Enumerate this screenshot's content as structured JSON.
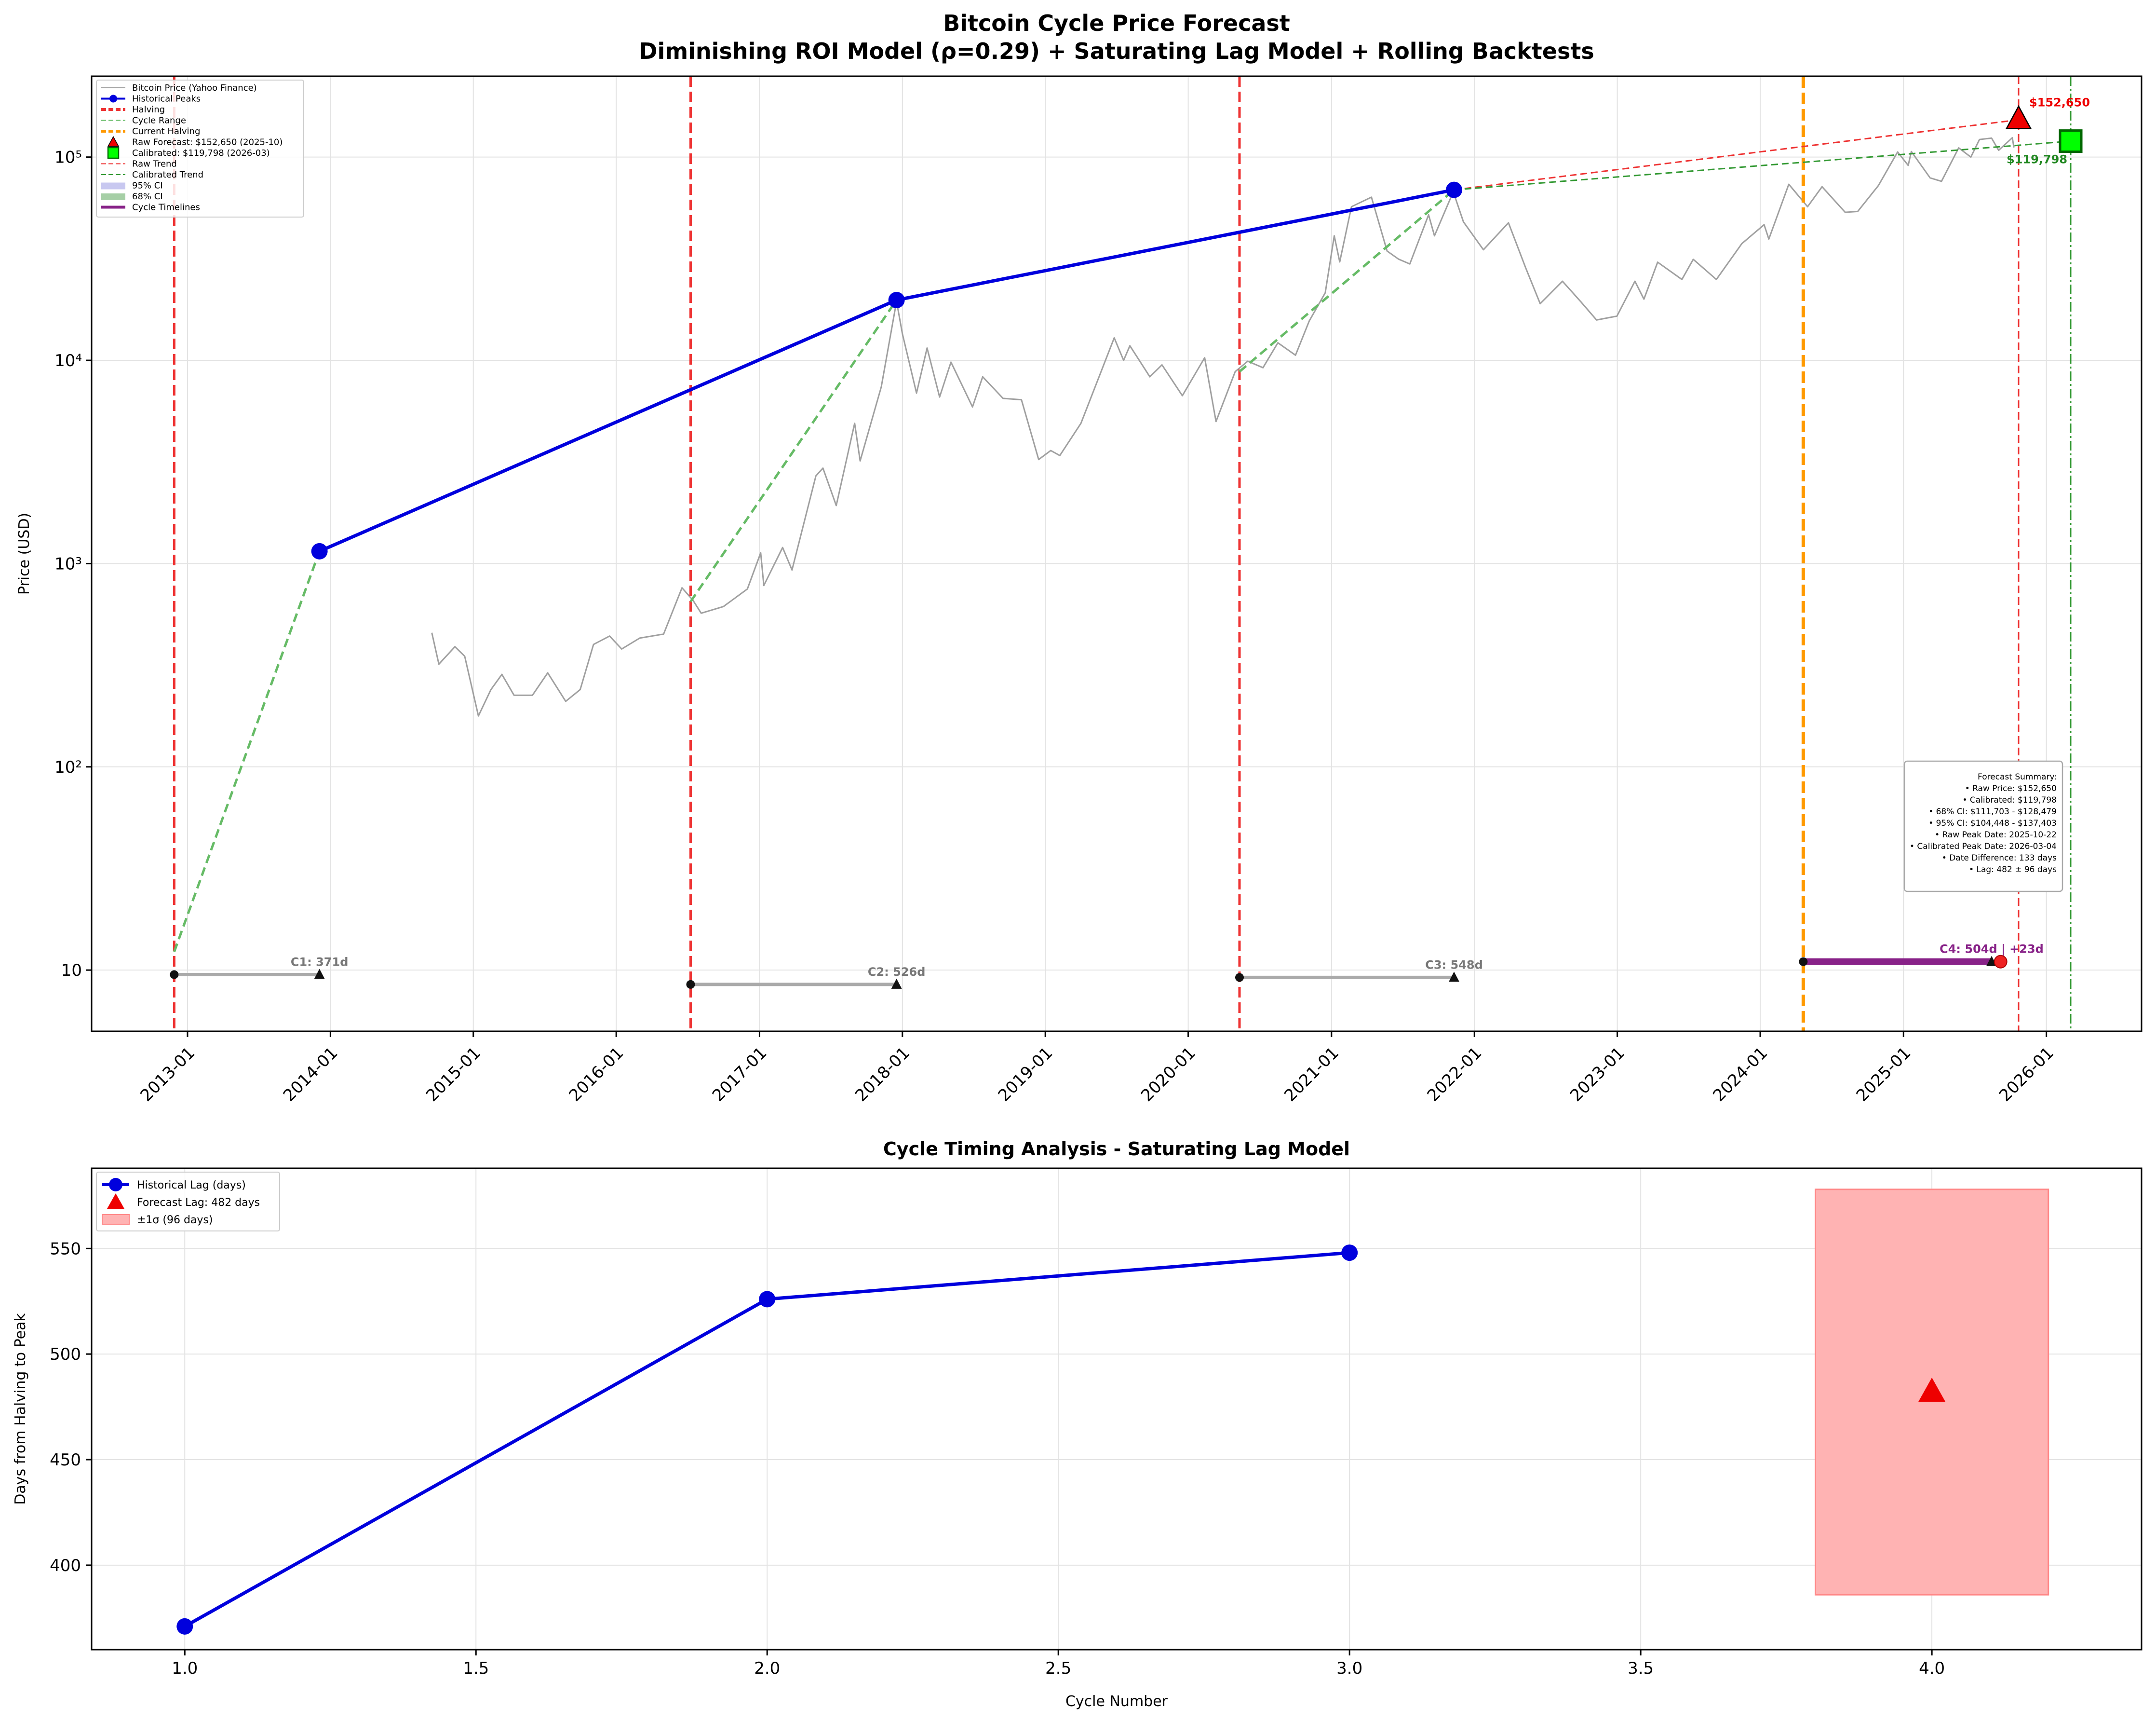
{
  "chart_data": [
    {
      "type": "line",
      "title": "Bitcoin Cycle Price Forecast",
      "subtitle": "Diminishing ROI Model (ρ=0.29) + Saturating Lag Model + Rolling Backtests",
      "ylabel": "Price (USD)",
      "xlabel": "",
      "yscale": "log",
      "ylim": [
        5,
        250000
      ],
      "xlim": [
        "2012-05-01",
        "2026-09-01"
      ],
      "grid": true,
      "legend_position": "top-left",
      "x_ticks": [
        "2013-01",
        "2014-01",
        "2015-01",
        "2016-01",
        "2017-01",
        "2018-01",
        "2019-01",
        "2020-01",
        "2021-01",
        "2022-01",
        "2023-01",
        "2024-01",
        "2025-01",
        "2026-01"
      ],
      "y_ticks": [
        {
          "value": 10,
          "label": "10"
        },
        {
          "value": 100,
          "label": "10²"
        },
        {
          "value": 1000,
          "label": "10³"
        },
        {
          "value": 10000,
          "label": "10⁴"
        },
        {
          "value": 100000,
          "label": "10⁵"
        }
      ],
      "legend": [
        {
          "label": "Bitcoin Price (Yahoo Finance)",
          "color": "#a0a0a0",
          "style": "solid-thin"
        },
        {
          "label": "Historical Peaks",
          "color": "#0000dd",
          "style": "line-marker"
        },
        {
          "label": "Halving",
          "color": "#ee3333",
          "style": "dashed-thick"
        },
        {
          "label": "Cycle Range",
          "color": "#66bb66",
          "style": "dashed-thin"
        },
        {
          "label": "Current Halving",
          "color": "#ff9900",
          "style": "dashed-thick"
        },
        {
          "label": "Raw Forecast: $152,650 (2025-10)",
          "color": "#ee0000",
          "style": "triangle"
        },
        {
          "label": "Calibrated: $119,798 (2026-03)",
          "color": "#00ff00",
          "style": "square"
        },
        {
          "label": "Raw Trend",
          "color": "#ee3333",
          "style": "dashed-thin"
        },
        {
          "label": "Calibrated Trend",
          "color": "#339933",
          "style": "dashed-thin"
        },
        {
          "label": "95% CI",
          "color": "#c8c8f0",
          "style": "patch"
        },
        {
          "label": "68% CI",
          "color": "#a6cfa6",
          "style": "patch"
        },
        {
          "label": "Cycle Timelines",
          "color": "#882288",
          "style": "solid-thick"
        }
      ],
      "series": [
        {
          "name": "Bitcoin Price (Yahoo Finance)",
          "points": [
            [
              "2014-09-17",
              457
            ],
            [
              "2014-10-05",
              320
            ],
            [
              "2014-11-15",
              390
            ],
            [
              "2014-12-10",
              350
            ],
            [
              "2015-01-14",
              178
            ],
            [
              "2015-02-15",
              240
            ],
            [
              "2015-03-15",
              285
            ],
            [
              "2015-04-15",
              225
            ],
            [
              "2015-06-01",
              225
            ],
            [
              "2015-07-10",
              290
            ],
            [
              "2015-08-25",
              210
            ],
            [
              "2015-10-01",
              240
            ],
            [
              "2015-11-04",
              400
            ],
            [
              "2015-12-15",
              440
            ],
            [
              "2016-01-15",
              380
            ],
            [
              "2016-03-01",
              430
            ],
            [
              "2016-05-01",
              450
            ],
            [
              "2016-06-17",
              760
            ],
            [
              "2016-07-15",
              660
            ],
            [
              "2016-08-05",
              570
            ],
            [
              "2016-10-01",
              615
            ],
            [
              "2016-12-01",
              750
            ],
            [
              "2017-01-04",
              1130
            ],
            [
              "2017-01-12",
              780
            ],
            [
              "2017-03-01",
              1200
            ],
            [
              "2017-03-25",
              930
            ],
            [
              "2017-05-25",
              2700
            ],
            [
              "2017-06-12",
              2950
            ],
            [
              "2017-07-16",
              1930
            ],
            [
              "2017-09-01",
              4900
            ],
            [
              "2017-09-15",
              3200
            ],
            [
              "2017-11-08",
              7400
            ],
            [
              "2017-12-17",
              19500
            ],
            [
              "2018-01-01",
              13500
            ],
            [
              "2018-02-06",
              6900
            ],
            [
              "2018-03-05",
              11500
            ],
            [
              "2018-04-06",
              6600
            ],
            [
              "2018-05-05",
              9800
            ],
            [
              "2018-06-29",
              5900
            ],
            [
              "2018-07-25",
              8300
            ],
            [
              "2018-09-15",
              6500
            ],
            [
              "2018-11-01",
              6400
            ],
            [
              "2018-12-15",
              3250
            ],
            [
              "2019-01-15",
              3600
            ],
            [
              "2019-02-07",
              3400
            ],
            [
              "2019-04-02",
              4900
            ],
            [
              "2019-06-26",
              12900
            ],
            [
              "2019-07-20",
              10000
            ],
            [
              "2019-08-05",
              11800
            ],
            [
              "2019-09-25",
              8300
            ],
            [
              "2019-10-26",
              9500
            ],
            [
              "2019-12-17",
              6700
            ],
            [
              "2020-02-12",
              10300
            ],
            [
              "2020-03-12",
              5000
            ],
            [
              "2020-04-30",
              8800
            ],
            [
              "2020-06-01",
              9900
            ],
            [
              "2020-07-10",
              9200
            ],
            [
              "2020-08-17",
              12200
            ],
            [
              "2020-10-01",
              10600
            ],
            [
              "2020-11-05",
              15600
            ],
            [
              "2020-12-16",
              21500
            ],
            [
              "2021-01-08",
              41000
            ],
            [
              "2021-01-22",
              30500
            ],
            [
              "2021-02-21",
              57000
            ],
            [
              "2021-04-13",
              63500
            ],
            [
              "2021-05-23",
              34500
            ],
            [
              "2021-06-21",
              31500
            ],
            [
              "2021-07-20",
              29800
            ],
            [
              "2021-09-06",
              52000
            ],
            [
              "2021-09-21",
              41000
            ],
            [
              "2021-11-08",
              67500
            ],
            [
              "2021-12-04",
              48000
            ],
            [
              "2022-01-24",
              35000
            ],
            [
              "2022-03-29",
              47500
            ],
            [
              "2022-05-12",
              28500
            ],
            [
              "2022-06-18",
              19000
            ],
            [
              "2022-08-14",
              24500
            ],
            [
              "2022-09-30",
              19400
            ],
            [
              "2022-11-09",
              15800
            ],
            [
              "2022-12-31",
              16500
            ],
            [
              "2023-02-15",
              24500
            ],
            [
              "2023-03-10",
              20000
            ],
            [
              "2023-04-14",
              30400
            ],
            [
              "2023-06-15",
              25000
            ],
            [
              "2023-07-14",
              31400
            ],
            [
              "2023-09-11",
              25000
            ],
            [
              "2023-11-15",
              37500
            ],
            [
              "2024-01-11",
              46500
            ],
            [
              "2024-01-23",
              39500
            ],
            [
              "2024-03-14",
              73500
            ],
            [
              "2024-05-01",
              57000
            ],
            [
              "2024-06-07",
              71500
            ],
            [
              "2024-08-05",
              53500
            ],
            [
              "2024-09-06",
              54000
            ],
            [
              "2024-10-29",
              72500
            ],
            [
              "2024-12-17",
              106000
            ],
            [
              "2025-01-13",
              91000
            ],
            [
              "2025-01-21",
              106500
            ],
            [
              "2025-03-10",
              79000
            ],
            [
              "2025-04-08",
              76000
            ],
            [
              "2025-05-22",
              111000
            ],
            [
              "2025-06-22",
              100000
            ],
            [
              "2025-07-14",
              122000
            ],
            [
              "2025-08-14",
              124000
            ],
            [
              "2025-09-01",
              108000
            ],
            [
              "2025-10-06",
              124500
            ],
            [
              "2025-10-10",
              111500
            ]
          ]
        },
        {
          "name": "Historical Peaks",
          "points": [
            [
              "2013-12-04",
              1150
            ],
            [
              "2017-12-17",
              19800
            ],
            [
              "2021-11-10",
              69000
            ]
          ]
        },
        {
          "name": "Halving",
          "dates": [
            "2012-11-28",
            "2016-07-09",
            "2020-05-11"
          ]
        },
        {
          "name": "Current Halving",
          "dates": [
            "2024-04-20"
          ]
        },
        {
          "name": "Cycle Range",
          "segments": [
            [
              [
                "2012-11-28",
                12.3
              ],
              [
                "2013-12-04",
                1150
              ]
            ],
            [
              [
                "2016-07-09",
                650
              ],
              [
                "2017-12-17",
                19800
              ]
            ],
            [
              [
                "2020-05-11",
                8800
              ],
              [
                "2021-11-10",
                69000
              ]
            ]
          ]
        },
        {
          "name": "Raw Trend",
          "points": [
            [
              "2021-11-10",
              69000
            ],
            [
              "2025-10-22",
              152650
            ]
          ],
          "vline": "2025-10-22"
        },
        {
          "name": "Calibrated Trend",
          "points": [
            [
              "2021-11-10",
              69000
            ],
            [
              "2026-03-04",
              119798
            ]
          ],
          "vline": "2026-03-04"
        },
        {
          "name": "Cycle Timelines",
          "segments": [
            {
              "start": [
                "2012-11-28",
                9.5
              ],
              "end": [
                "2013-12-04",
                9.5
              ],
              "label": "C1: 371d",
              "color": "#aaaaaa"
            },
            {
              "start": [
                "2016-07-09",
                8.5
              ],
              "end": [
                "2017-12-17",
                8.5
              ],
              "label": "C2: 526d",
              "color": "#aaaaaa"
            },
            {
              "start": [
                "2020-05-11",
                9.2
              ],
              "end": [
                "2021-11-10",
                9.2
              ],
              "label": "C3: 548d",
              "color": "#aaaaaa"
            },
            {
              "start": [
                "2024-04-20",
                11
              ],
              "end": [
                "2025-08-14",
                11
              ],
              "marker": [
                "2025-09-06",
                11
              ],
              "label": "C4: 504d | +23d",
              "color": "#882288"
            }
          ]
        }
      ],
      "forecast": {
        "raw": {
          "date": "2025-10-22",
          "price": 152650,
          "label": "$152,650"
        },
        "calibrated": {
          "date": "2026-03-04",
          "price": 119798,
          "label": "$119,798"
        }
      },
      "summary_box": {
        "position": "right",
        "lines": [
          "Forecast Summary:",
          "• Raw Price: $152,650",
          "• Calibrated: $119,798",
          "• 68% CI: $111,703 - $128,479",
          "• 95% CI: $104,448 - $137,403",
          "• Raw Peak Date: 2025-10-22",
          "• Calibrated Peak Date: 2026-03-04",
          "• Date Difference: 133 days",
          "• Lag: 482 ± 96 days"
        ]
      }
    },
    {
      "type": "line",
      "title": "Cycle Timing Analysis - Saturating Lag Model",
      "xlabel": "Cycle Number",
      "ylabel": "Days from Halving to Peak",
      "xlim": [
        0.84,
        4.36
      ],
      "ylim": [
        360,
        588
      ],
      "grid": true,
      "legend_position": "top-left",
      "x_ticks": [
        1.0,
        1.5,
        2.0,
        2.5,
        3.0,
        3.5,
        4.0
      ],
      "x_tick_labels": [
        "1.0",
        "1.5",
        "2.0",
        "2.5",
        "3.0",
        "3.5",
        "4.0"
      ],
      "y_ticks": [
        400,
        450,
        500,
        550
      ],
      "y_tick_labels": [
        "400",
        "450",
        "500",
        "550"
      ],
      "legend": [
        {
          "label": "Historical Lag (days)",
          "color": "#0000dd",
          "style": "line-marker"
        },
        {
          "label": "Forecast Lag: 482 days",
          "color": "#ee0000",
          "style": "triangle"
        },
        {
          "label": "±1σ (96 days)",
          "color": "#ffb3b3",
          "style": "patch"
        }
      ],
      "series": [
        {
          "name": "Historical Lag (days)",
          "x": [
            1,
            2,
            3
          ],
          "y": [
            371,
            526,
            548
          ]
        },
        {
          "name": "Forecast Lag: 482 days",
          "x": [
            4
          ],
          "y": [
            482
          ]
        },
        {
          "name": "±1σ (96 days)",
          "x_range": [
            3.8,
            4.2
          ],
          "y_range": [
            386,
            578
          ]
        }
      ]
    }
  ]
}
